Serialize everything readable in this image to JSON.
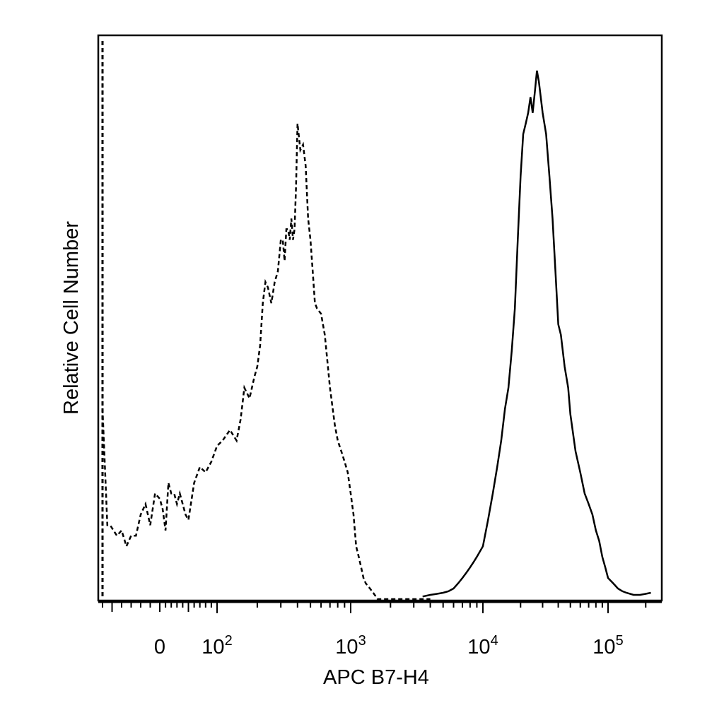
{
  "chart_data": {
    "type": "line",
    "title": "",
    "xlabel": "APC B7-H4",
    "ylabel": "Relative Cell Number",
    "xscale": "biexponential",
    "xlim": [
      -60,
      250000
    ],
    "ylim": [
      0,
      1
    ],
    "grid": false,
    "legend": "none",
    "x_tick_labels": [
      {
        "label": "0",
        "base": "0",
        "exp": "",
        "value": 0
      },
      {
        "label": "10^2",
        "base": "10",
        "exp": "2",
        "value": 100
      },
      {
        "label": "10^3",
        "base": "10",
        "exp": "3",
        "value": 1000
      },
      {
        "label": "10^4",
        "base": "10",
        "exp": "4",
        "value": 10000
      },
      {
        "label": "10^5",
        "base": "10",
        "exp": "5",
        "value": 100000
      }
    ],
    "series": [
      {
        "style": "dashed",
        "color": "#000000",
        "x": [
          -60,
          -55,
          -52,
          -45,
          -40,
          -35,
          -30,
          -25,
          -20,
          -15,
          -10,
          -5,
          0,
          5,
          10,
          15,
          20,
          25,
          30,
          35,
          40,
          45,
          50,
          60,
          70,
          80,
          90,
          100,
          110,
          125,
          140,
          150,
          160,
          175,
          190,
          200,
          210,
          220,
          230,
          240,
          255,
          270,
          285,
          300,
          310,
          320,
          330,
          340,
          350,
          360,
          370,
          380,
          390,
          400,
          420,
          440,
          460,
          480,
          500,
          520,
          540,
          560,
          600,
          640,
          700,
          760,
          800,
          850,
          900,
          950,
          1000,
          1050,
          1100,
          1150,
          1200,
          1250,
          1300,
          1400,
          1500,
          1600,
          1700,
          1800,
          1900,
          2000,
          2200,
          2400,
          2600,
          2800,
          3000,
          3500,
          4000
        ],
        "y": [
          0.36,
          0.14,
          0.14,
          0.12,
          0.13,
          0.1,
          0.12,
          0.12,
          0.16,
          0.18,
          0.14,
          0.2,
          0.19,
          0.17,
          0.13,
          0.22,
          0.2,
          0.2,
          0.18,
          0.2,
          0.18,
          0.16,
          0.15,
          0.22,
          0.25,
          0.24,
          0.26,
          0.29,
          0.3,
          0.32,
          0.3,
          0.34,
          0.4,
          0.38,
          0.42,
          0.44,
          0.48,
          0.56,
          0.6,
          0.59,
          0.56,
          0.6,
          0.62,
          0.68,
          0.68,
          0.64,
          0.7,
          0.7,
          0.68,
          0.72,
          0.68,
          0.7,
          0.78,
          0.9,
          0.85,
          0.86,
          0.82,
          0.72,
          0.68,
          0.62,
          0.56,
          0.55,
          0.54,
          0.5,
          0.4,
          0.33,
          0.3,
          0.28,
          0.26,
          0.24,
          0.2,
          0.16,
          0.1,
          0.08,
          0.06,
          0.04,
          0.03,
          0.02,
          0.01,
          0.0,
          0.0,
          0.0,
          0.0,
          0.0,
          0.0,
          0.0,
          0.0,
          0.0,
          0.0,
          0.0,
          0.0
        ]
      },
      {
        "style": "solid",
        "color": "#000000",
        "x": [
          3500,
          4000,
          4500,
          5000,
          5500,
          6000,
          6500,
          7000,
          7500,
          8000,
          8500,
          9000,
          10000,
          11000,
          12000,
          13000,
          14000,
          15000,
          16000,
          17000,
          18000,
          19000,
          20000,
          21000,
          22000,
          23000,
          24000,
          25000,
          26000,
          27000,
          28000,
          30000,
          32000,
          34000,
          36000,
          38000,
          40000,
          42000,
          45000,
          48000,
          50000,
          55000,
          60000,
          65000,
          70000,
          75000,
          80000,
          85000,
          90000,
          95000,
          100000,
          110000,
          120000,
          130000,
          140000,
          150000,
          160000,
          180000,
          200000,
          220000
        ],
        "y": [
          0.005,
          0.008,
          0.01,
          0.012,
          0.015,
          0.02,
          0.03,
          0.04,
          0.05,
          0.06,
          0.07,
          0.08,
          0.1,
          0.15,
          0.2,
          0.25,
          0.3,
          0.36,
          0.4,
          0.47,
          0.55,
          0.68,
          0.8,
          0.88,
          0.9,
          0.92,
          0.95,
          0.92,
          0.96,
          1.0,
          0.98,
          0.92,
          0.88,
          0.8,
          0.72,
          0.62,
          0.52,
          0.5,
          0.44,
          0.4,
          0.35,
          0.28,
          0.24,
          0.2,
          0.18,
          0.16,
          0.13,
          0.11,
          0.08,
          0.06,
          0.04,
          0.03,
          0.02,
          0.015,
          0.012,
          0.01,
          0.008,
          0.008,
          0.01,
          0.012
        ]
      }
    ]
  }
}
